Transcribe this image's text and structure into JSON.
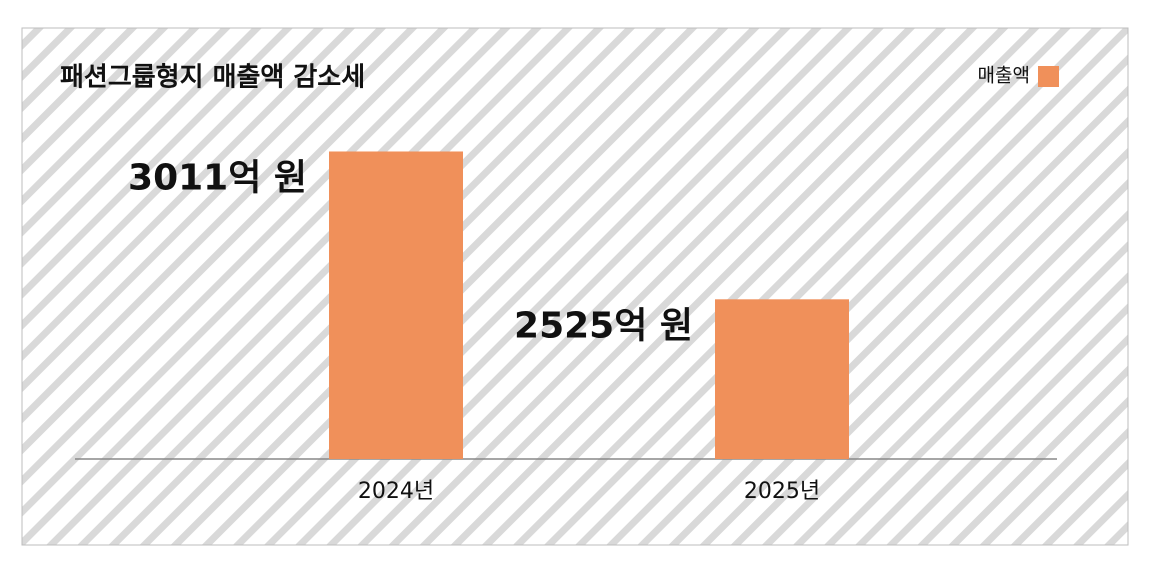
{
  "chart_data": {
    "type": "bar",
    "title": "패션그룹형지 매출액 감소세",
    "categories": [
      "2024년",
      "2025년"
    ],
    "series": [
      {
        "name": "매출액",
        "color": "#f0905a",
        "values": [
          3011,
          2525
        ],
        "value_labels": [
          "3011억 원",
          "2525억 원"
        ]
      }
    ],
    "ylim": [
      2000,
      3200
    ],
    "legend": "top-right"
  }
}
